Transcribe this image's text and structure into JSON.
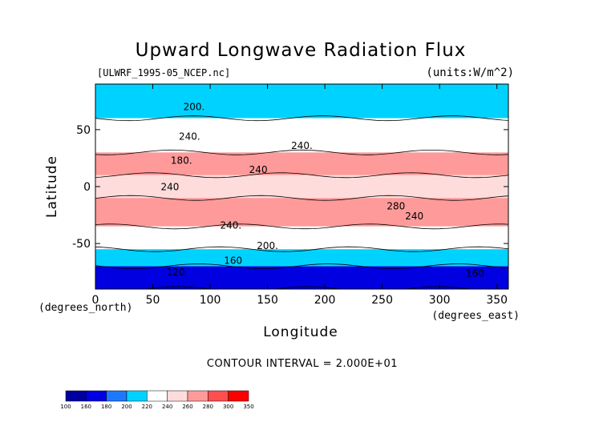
{
  "chart_data": {
    "type": "contour_map",
    "title": "Upward Longwave Radiation Flux",
    "source": "[ULWRF_1995-05_NCEP.nc]",
    "units": "(units:W/m^2)",
    "xlabel": "Longitude",
    "ylabel": "Latitude",
    "xunit": "(degrees_east)",
    "yunit": "(degrees_north)",
    "xlim": [
      0,
      360
    ],
    "ylim": [
      -90,
      90
    ],
    "xticks": [
      "0",
      "50",
      "100",
      "150",
      "200",
      "250",
      "300",
      "350"
    ],
    "yticks": [
      "-50",
      "0",
      "50"
    ],
    "contour_interval": "CONTOUR INTERVAL = 2.000E+01",
    "contour_labels": [
      {
        "text": "200.",
        "x": 86,
        "y": 67
      },
      {
        "text": "240.",
        "x": 82,
        "y": 41
      },
      {
        "text": "240.",
        "x": 180,
        "y": 33
      },
      {
        "text": "180.",
        "x": 75,
        "y": 20
      },
      {
        "text": "240",
        "x": 142,
        "y": 12
      },
      {
        "text": "240",
        "x": 65,
        "y": -3
      },
      {
        "text": "280",
        "x": 262,
        "y": -20
      },
      {
        "text": "240",
        "x": 278,
        "y": -29
      },
      {
        "text": "240.",
        "x": 118,
        "y": -37
      },
      {
        "text": "200.",
        "x": 150,
        "y": -55
      },
      {
        "text": "160",
        "x": 120,
        "y": -68
      },
      {
        "text": "120",
        "x": 70,
        "y": -78
      },
      {
        "text": "160",
        "x": 331,
        "y": -79
      }
    ],
    "legend": {
      "levels": [
        "100",
        "160",
        "180",
        "200",
        "220",
        "240",
        "260",
        "280",
        "300",
        "350"
      ],
      "colors": [
        "#0000a0",
        "#0000e0",
        "#1e78ff",
        "#00d2ff",
        "#ffffff",
        "#ffdcdc",
        "#ff9a9a",
        "#ff5050",
        "#ff0000"
      ]
    },
    "bands": [
      {
        "lat": [
          60,
          90
        ],
        "value": 200
      },
      {
        "lat": [
          30,
          60
        ],
        "value": 230
      },
      {
        "lat": [
          10,
          30
        ],
        "value": 275
      },
      {
        "lat": [
          -10,
          10
        ],
        "value": 245
      },
      {
        "lat": [
          -35,
          -10
        ],
        "value": 265
      },
      {
        "lat": [
          -55,
          -35
        ],
        "value": 230
      },
      {
        "lat": [
          -70,
          -55
        ],
        "value": 205
      },
      {
        "lat": [
          -90,
          -70
        ],
        "value": 160
      }
    ]
  }
}
